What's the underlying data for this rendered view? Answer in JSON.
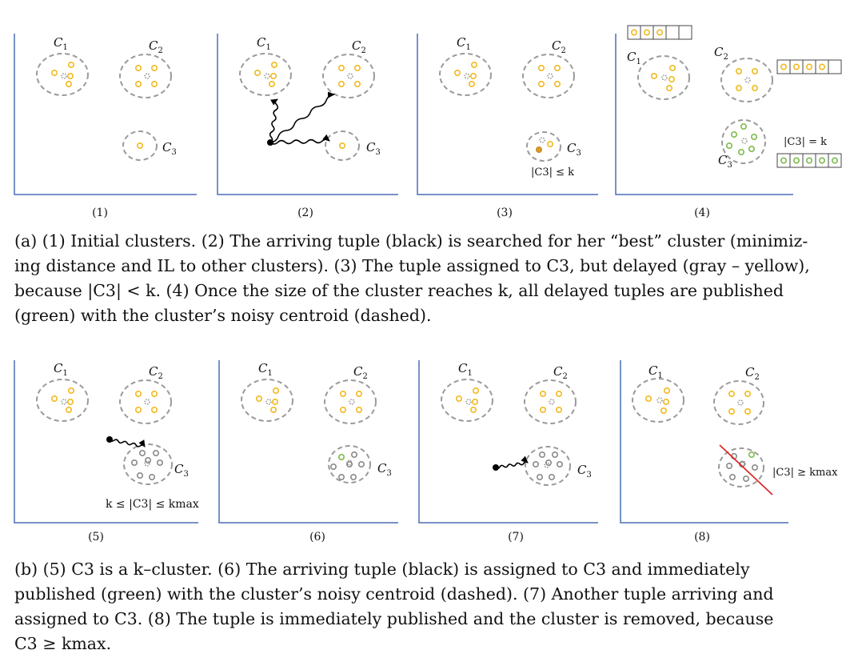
{
  "figure_a": {
    "panels": [
      {
        "number": "(1)",
        "clusters": [
          "C1",
          "C2",
          "C3"
        ],
        "annotation": ""
      },
      {
        "number": "(2)",
        "clusters": [
          "C1",
          "C2",
          "C3"
        ],
        "annotation": ""
      },
      {
        "number": "(3)",
        "clusters": [
          "C1",
          "C2",
          "C3"
        ],
        "annotation": "|C3| ≤ k"
      },
      {
        "number": "(4)",
        "clusters": [
          "C1",
          "C2",
          "C3"
        ],
        "annotation": "|C3| = k"
      }
    ],
    "caption_lines": [
      "(a) (1) Initial clusters. (2) The arriving tuple (black) is searched for her “best” cluster (minimiz-",
      "ing distance and IL to other clusters). (3) The tuple assigned to C3, but delayed (gray – yellow),",
      "because |C3| < k. (4) Once the size of the cluster reaches k, all delayed tuples are published",
      "(green) with the cluster’s noisy centroid (dashed)."
    ]
  },
  "figure_b": {
    "panels": [
      {
        "number": "(5)",
        "clusters": [
          "C1",
          "C2",
          "C3"
        ],
        "annotation": "k ≤ |C3| ≤ kmax"
      },
      {
        "number": "(6)",
        "clusters": [
          "C1",
          "C2",
          "C3"
        ],
        "annotation": ""
      },
      {
        "number": "(7)",
        "clusters": [
          "C1",
          "C2",
          "C3"
        ],
        "annotation": ""
      },
      {
        "number": "(8)",
        "clusters": [
          "C1",
          "C2",
          "C3"
        ],
        "annotation": "|C3| ≥ kmax"
      }
    ],
    "caption_lines": [
      "(b) (5) C3 is a k–cluster. (6) The arriving tuple (black) is assigned to C3 and immediately",
      "published (green) with the cluster’s noisy centroid (dashed). (7) Another tuple arriving and",
      "assigned to C3. (8) The tuple is immediately published and the cluster is removed, because",
      "C3 ≥ kmax."
    ]
  },
  "colors": {
    "axis": "#4a6fb5",
    "cluster_border": "#9a9a9a",
    "yellow_tuple": "#f2b91e",
    "green_tuple": "#7dbb4a",
    "gray_tuple": "#8a8a8a",
    "black_tuple": "#000000",
    "remove_line": "#e02020"
  }
}
